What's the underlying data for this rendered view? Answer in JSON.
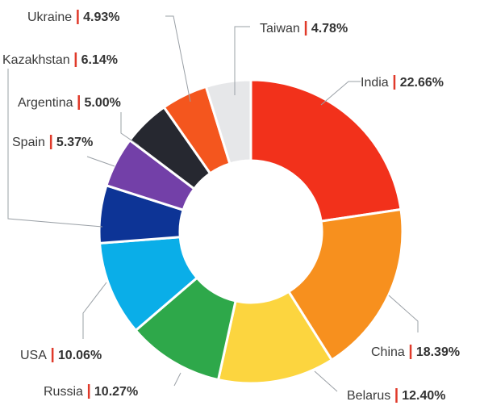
{
  "chart_data": {
    "type": "pie",
    "title": "",
    "series": [
      {
        "name": "India",
        "value": 22.66,
        "color": "#f2311b"
      },
      {
        "name": "China",
        "value": 18.39,
        "color": "#f7901e"
      },
      {
        "name": "Belarus",
        "value": 12.4,
        "color": "#fcd53f"
      },
      {
        "name": "Russia",
        "value": 10.27,
        "color": "#2ea84a"
      },
      {
        "name": "USA",
        "value": 10.06,
        "color": "#0aaee8"
      },
      {
        "name": "Kazakhstan",
        "value": 6.14,
        "color": "#0d3496"
      },
      {
        "name": "Spain",
        "value": 5.37,
        "color": "#7340a8"
      },
      {
        "name": "Argentina",
        "value": 5.0,
        "color": "#262830"
      },
      {
        "name": "Ukraine",
        "value": 4.93,
        "color": "#f4561e"
      },
      {
        "name": "Taiwan",
        "value": 4.78,
        "color": "#e6e7e9"
      }
    ],
    "labels": [
      {
        "name": "India",
        "value_text": "22.66%"
      },
      {
        "name": "China",
        "value_text": "18.39%"
      },
      {
        "name": "Belarus",
        "value_text": "12.40%"
      },
      {
        "name": "Russia",
        "value_text": "10.27%"
      },
      {
        "name": "USA",
        "value_text": "10.06%"
      },
      {
        "name": "Kazakhstan",
        "value_text": "6.14%"
      },
      {
        "name": "Spain",
        "value_text": "5.37%"
      },
      {
        "name": "Argentina",
        "value_text": "5.00%"
      },
      {
        "name": "Ukraine",
        "value_text": "4.93%"
      },
      {
        "name": "Taiwan",
        "value_text": "4.78%"
      }
    ],
    "hole": "donut",
    "legend": "none"
  }
}
